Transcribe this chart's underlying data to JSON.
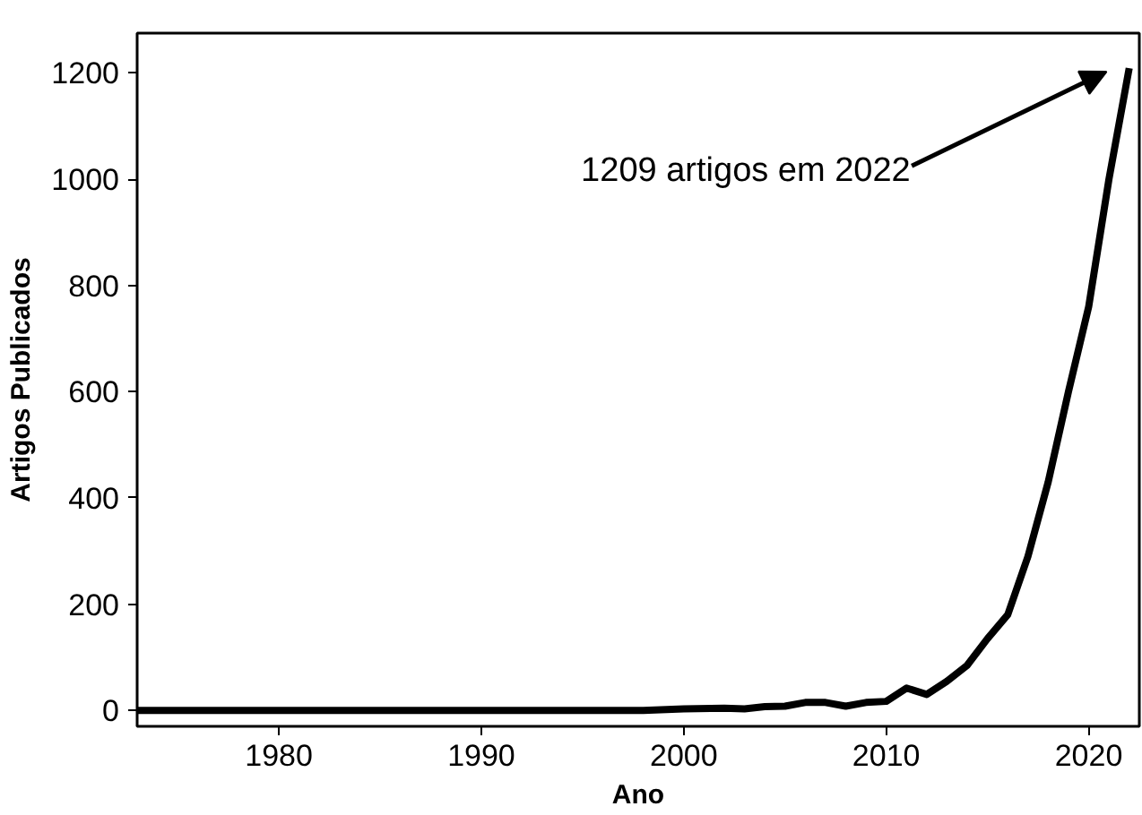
{
  "chart_data": {
    "type": "line",
    "xlabel": "Ano",
    "ylabel": "Artigos Publicados",
    "x": [
      1973,
      1980,
      1990,
      1998,
      2000,
      2002,
      2003,
      2004,
      2005,
      2006,
      2007,
      2008,
      2009,
      2010,
      2011,
      2012,
      2013,
      2014,
      2015,
      2016,
      2017,
      2018,
      2019,
      2020,
      2021,
      2022
    ],
    "series": [
      {
        "color": "#000000",
        "values": [
          0,
          0,
          0,
          0,
          3,
          4,
          3,
          7,
          8,
          15,
          15,
          8,
          15,
          17,
          42,
          30,
          55,
          85,
          135,
          180,
          290,
          430,
          600,
          760,
          1000,
          1209
        ]
      }
    ],
    "xlim": [
      1973,
      2022.5
    ],
    "ylim": [
      -30,
      1275
    ],
    "xticks": [
      1980,
      1990,
      2000,
      2010,
      2020
    ],
    "yticks": [
      0,
      200,
      400,
      600,
      800,
      1000,
      1200
    ],
    "annotations": [
      "1209 artigos em 2022"
    ],
    "grid": false,
    "marker": "none",
    "line_style": "solid"
  }
}
